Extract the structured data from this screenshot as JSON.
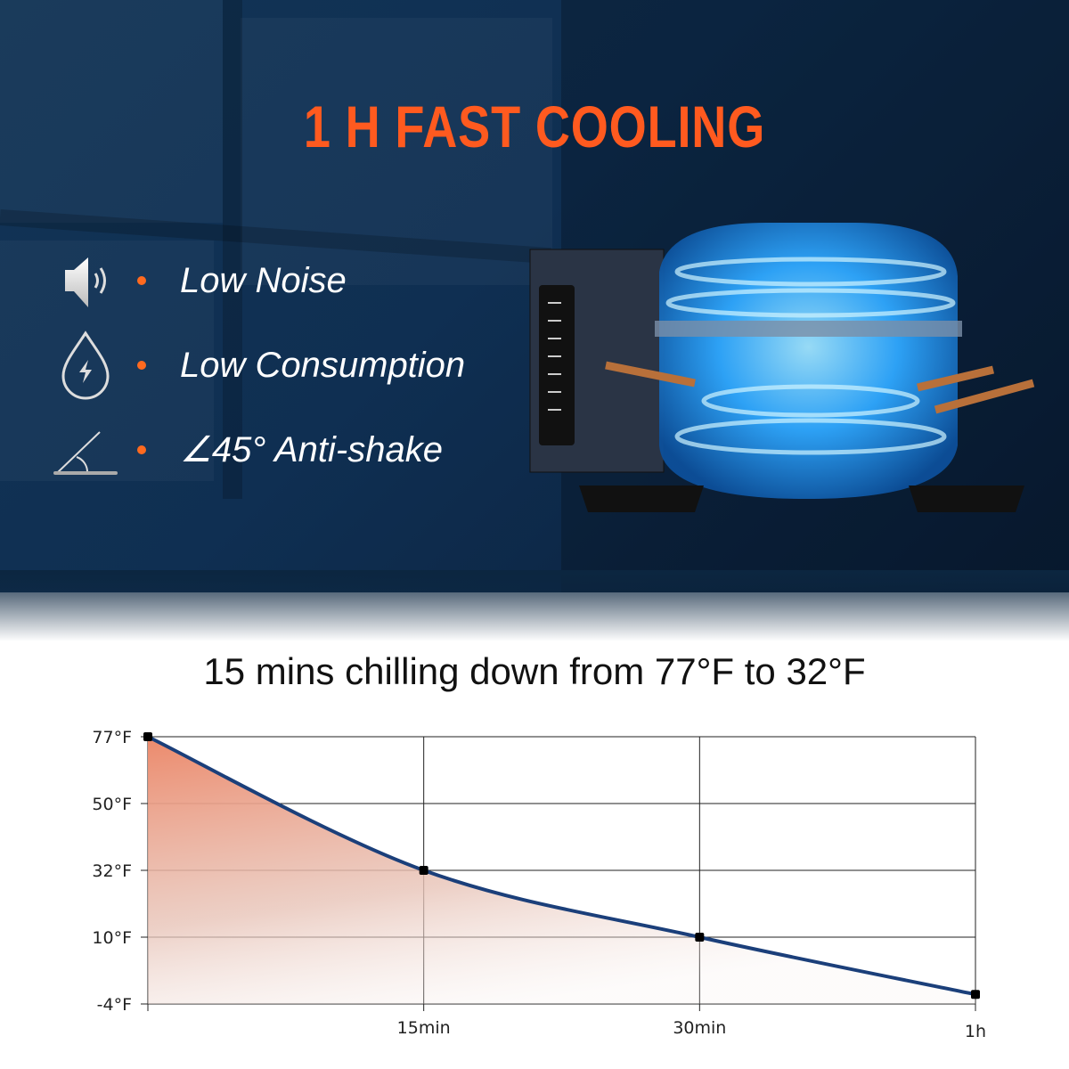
{
  "hero": {
    "title": "1 H FAST COOLING",
    "features": [
      {
        "icon": "speaker-icon",
        "label": "Low Noise"
      },
      {
        "icon": "drop-lightning-icon",
        "label": "Low Consumption"
      },
      {
        "icon": "angle-icon",
        "label": "∠45° Anti-shake"
      }
    ],
    "accent_color": "#ff5a1f"
  },
  "chart_data": {
    "type": "area",
    "title": "15 mins chilling down from 77°F to 32°F",
    "xlabel": "",
    "ylabel": "",
    "x_ticks": [
      "",
      "15min",
      "30min",
      "1h"
    ],
    "y_ticks": [
      "77°F",
      "50°F",
      "32°F",
      "10°F",
      "-4°F"
    ],
    "y_tick_values": [
      77,
      50,
      32,
      10,
      -4
    ],
    "points": [
      {
        "x": "0",
        "y": 77
      },
      {
        "x": "15min",
        "y": 32
      },
      {
        "x": "30min",
        "y": 10
      },
      {
        "x": "1h",
        "y": -2
      }
    ],
    "grid": true,
    "line_color": "#1b3f7a",
    "fill_color": "#ec8a6c"
  }
}
